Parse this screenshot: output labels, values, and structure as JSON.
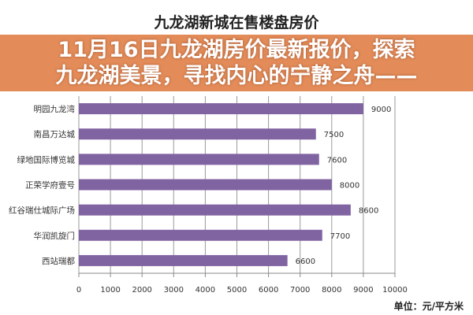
{
  "chart_data": {
    "type": "bar",
    "orientation": "horizontal",
    "title": "九龙湖新城在售楼盘房价",
    "categories": [
      "明园九龙湾",
      "南昌万达城",
      "绿地国际博览城",
      "正荣学府壹号",
      "红谷瑞仕城际广场",
      "华润凯旋门",
      "西站瑞都"
    ],
    "values": [
      9000,
      7500,
      7600,
      8000,
      8600,
      7700,
      6600
    ],
    "xlim": [
      0,
      10000
    ],
    "xticks": [
      "0",
      "1000",
      "2000",
      "3000",
      "4000",
      "5000",
      "6000",
      "7000",
      "8000",
      "9000",
      "10000"
    ],
    "unit_label": "单位：元/平方米",
    "grid": "vertical",
    "bar_color": "#8064a2"
  },
  "overlay": {
    "headline_line1": "11月16日九龙湖房价最新报价，探索",
    "headline_line2": "九龙湖美景，寻找内心的宁静之舟——",
    "banner_color": "#de783c"
  }
}
